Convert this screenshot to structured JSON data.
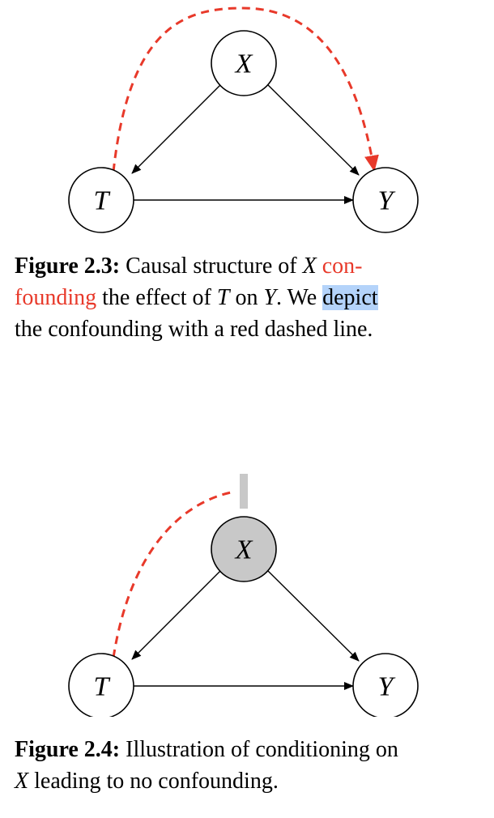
{
  "figure_2_3": {
    "nodes": {
      "x": "X",
      "t": "T",
      "y": "Y"
    },
    "caption": {
      "lead": "Figure 2.3:",
      "part1": "Causal structure of",
      "var_x": "X",
      "red_word1": "con-",
      "red_word2": "founding",
      "part2": "the effect of",
      "var_t": "T",
      "part3": "on",
      "var_y": "Y",
      "part4": ". We",
      "highlighted": "depict",
      "part5": "the confounding with a red dashed line."
    }
  },
  "figure_2_4": {
    "nodes": {
      "x": "X",
      "t": "T",
      "y": "Y"
    },
    "caption": {
      "lead": "Figure 2.4:",
      "part1": "Illustration of conditioning on",
      "var_x": "X",
      "part2": "leading to no confounding."
    }
  },
  "colors": {
    "confounding_line": "#e8392a",
    "conditioned_node_fill": "#c8c8c8",
    "text_highlight": "#b4d3fa"
  }
}
